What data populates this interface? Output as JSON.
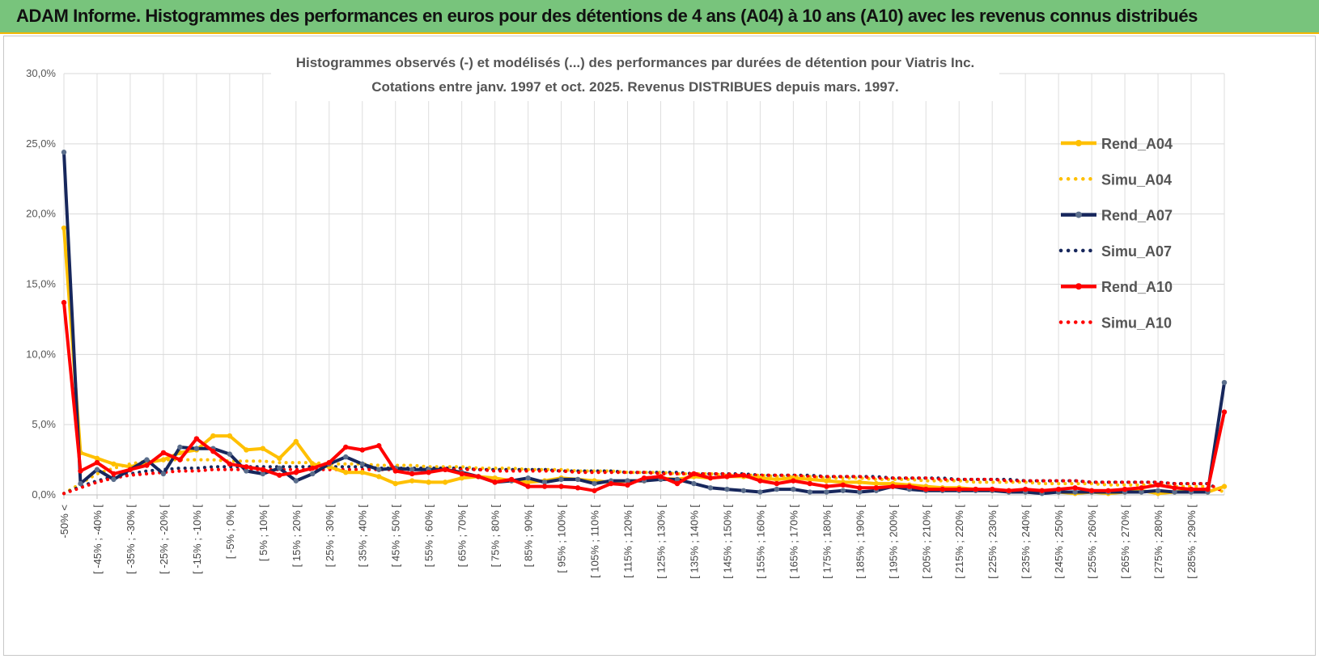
{
  "header": {
    "title": "ADAM Informe. Histogrammes des performances en euros pour des détentions de 4 ans (A04) à 10 ans (A10) avec les revenus connus distribués"
  },
  "chart_data": {
    "type": "line",
    "title_lines": [
      "Histogrammes observés (-) et modélisés (...) des performances par durées de détention pour Viatris Inc.",
      "Cotations entre janv. 1997 et oct. 2025.  Revenus DISTRIBUES depuis mars. 1997."
    ],
    "ylim": [
      0,
      30
    ],
    "y_ticks": [
      "0,0%",
      "5,0%",
      "10,0%",
      "15,0%",
      "20,0%",
      "25,0%",
      "30,0%"
    ],
    "x_tick_labels": [
      "-50% <",
      "[ -45% ; -40% [",
      "[ -35% ; -30% [",
      "[ -25% ; -20% [",
      "[ -15% ; -10% [",
      "[ -5% ; 0% [",
      "[ 5% ; 10% [",
      "[ 15% ; 20% [",
      "[ 25% ; 30% [",
      "[ 35% ; 40% [",
      "[ 45% ; 50% [",
      "[ 55% ; 60% [",
      "[ 65% ; 70% [",
      "[ 75% ; 80% [",
      "[ 85% ; 90% [",
      "[ 95% ; 100% [",
      "[ 105% ; 110% [",
      "[ 115% ; 120% [",
      "[ 125% ; 130% [",
      "[ 135% ; 140% [",
      "[ 145% ; 150% [",
      "[ 155% ; 160% [",
      "[ 165% ; 170% [",
      "[ 175% ; 180% [",
      "[ 185% ; 190% [",
      "[ 195% ; 200% [",
      "[ 205% ; 210% [",
      "[ 215% ; 220% [",
      "[ 225% ; 230% [",
      "[ 235% ; 240% [",
      "[ 245% ; 250% [",
      "[ 255% ; 260% [",
      "[ 265% ; 270% [",
      "[ 275% ; 280% [",
      "[ 285% ; 290% ["
    ],
    "category_count": 71,
    "legend_position": "right",
    "series": [
      {
        "name": "Rend_A04",
        "color": "#ffc000",
        "style": "solid",
        "markers": true,
        "values": [
          19.0,
          3.0,
          2.6,
          2.2,
          2.0,
          2.3,
          2.5,
          3.0,
          3.2,
          4.2,
          4.2,
          3.2,
          3.3,
          2.6,
          3.8,
          2.2,
          2.0,
          1.6,
          1.6,
          1.3,
          0.8,
          1.0,
          0.9,
          0.9,
          1.2,
          1.3,
          1.2,
          1.0,
          0.9,
          1.0,
          1.2,
          1.1,
          1.0,
          0.9,
          1.0,
          1.0,
          1.2,
          1.1,
          1.3,
          1.2,
          1.3,
          1.3,
          1.2,
          1.1,
          1.2,
          1.1,
          1.0,
          0.9,
          0.9,
          0.8,
          0.8,
          0.7,
          0.6,
          0.5,
          0.5,
          0.4,
          0.3,
          0.3,
          0.2,
          0.3,
          0.2,
          0.1,
          0.2,
          0.1,
          0.2,
          0.3,
          0.1,
          0.2,
          0.3,
          0.2,
          0.6
        ]
      },
      {
        "name": "Simu_A04",
        "color": "#ffc000",
        "style": "dotted",
        "markers": false,
        "values": [
          0.1,
          0.8,
          1.5,
          1.9,
          2.2,
          2.4,
          2.5,
          2.5,
          2.5,
          2.5,
          2.4,
          2.4,
          2.4,
          2.3,
          2.3,
          2.3,
          2.2,
          2.2,
          2.2,
          2.1,
          2.1,
          2.1,
          2.0,
          2.0,
          2.0,
          1.9,
          1.9,
          1.9,
          1.8,
          1.8,
          1.8,
          1.7,
          1.7,
          1.7,
          1.6,
          1.6,
          1.6,
          1.5,
          1.5,
          1.5,
          1.4,
          1.4,
          1.4,
          1.3,
          1.3,
          1.3,
          1.2,
          1.2,
          1.2,
          1.1,
          1.1,
          1.1,
          1.0,
          1.0,
          1.0,
          0.9,
          0.9,
          0.9,
          0.9,
          0.8,
          0.8,
          0.8,
          0.8,
          0.7,
          0.7,
          0.7,
          0.7,
          0.6,
          0.6,
          0.6,
          0.2
        ]
      },
      {
        "name": "Rend_A07",
        "color": "#17275c",
        "style": "solid",
        "markers": true,
        "values": [
          24.4,
          0.8,
          1.8,
          1.1,
          1.8,
          2.5,
          1.5,
          3.4,
          3.3,
          3.3,
          2.9,
          1.7,
          1.5,
          1.9,
          1.0,
          1.5,
          2.2,
          2.7,
          2.2,
          1.8,
          1.9,
          1.8,
          1.8,
          1.8,
          1.6,
          1.3,
          0.9,
          1.0,
          1.2,
          0.9,
          1.1,
          1.1,
          0.8,
          1.0,
          1.0,
          1.0,
          1.1,
          1.1,
          0.8,
          0.5,
          0.4,
          0.3,
          0.2,
          0.4,
          0.4,
          0.2,
          0.2,
          0.3,
          0.2,
          0.3,
          0.6,
          0.4,
          0.3,
          0.3,
          0.3,
          0.3,
          0.3,
          0.2,
          0.2,
          0.1,
          0.2,
          0.2,
          0.2,
          0.2,
          0.2,
          0.2,
          0.3,
          0.2,
          0.2,
          0.2,
          8.0
        ]
      },
      {
        "name": "Simu_A07",
        "color": "#17275c",
        "style": "dotted",
        "markers": false,
        "values": [
          0.1,
          0.6,
          1.0,
          1.3,
          1.5,
          1.7,
          1.8,
          1.9,
          1.9,
          2.0,
          2.0,
          2.0,
          2.0,
          2.0,
          2.0,
          2.0,
          2.0,
          2.0,
          2.0,
          1.9,
          1.9,
          1.9,
          1.9,
          1.9,
          1.9,
          1.8,
          1.8,
          1.8,
          1.8,
          1.8,
          1.7,
          1.7,
          1.7,
          1.7,
          1.6,
          1.6,
          1.6,
          1.6,
          1.5,
          1.5,
          1.5,
          1.5,
          1.4,
          1.4,
          1.4,
          1.4,
          1.3,
          1.3,
          1.3,
          1.3,
          1.2,
          1.2,
          1.2,
          1.2,
          1.1,
          1.1,
          1.1,
          1.1,
          1.0,
          1.0,
          1.0,
          1.0,
          0.9,
          0.9,
          0.9,
          0.9,
          0.9,
          0.8,
          0.8,
          0.8,
          0.2
        ]
      },
      {
        "name": "Rend_A10",
        "color": "#ff0000",
        "style": "solid",
        "markers": true,
        "values": [
          13.7,
          1.7,
          2.3,
          1.5,
          1.8,
          2.1,
          3.0,
          2.5,
          4.0,
          3.1,
          2.2,
          2.0,
          1.8,
          1.4,
          1.6,
          1.9,
          2.3,
          3.4,
          3.2,
          3.5,
          1.7,
          1.5,
          1.6,
          1.8,
          1.5,
          1.3,
          0.9,
          1.1,
          0.6,
          0.6,
          0.6,
          0.5,
          0.3,
          0.8,
          0.7,
          1.2,
          1.3,
          0.8,
          1.5,
          1.2,
          1.3,
          1.4,
          1.0,
          0.8,
          1.0,
          0.8,
          0.6,
          0.7,
          0.5,
          0.5,
          0.6,
          0.6,
          0.4,
          0.4,
          0.4,
          0.4,
          0.4,
          0.3,
          0.4,
          0.3,
          0.4,
          0.5,
          0.3,
          0.3,
          0.4,
          0.5,
          0.7,
          0.5,
          0.4,
          0.4,
          5.9
        ]
      },
      {
        "name": "Simu_A10",
        "color": "#ff0000",
        "style": "dotted",
        "markers": false,
        "values": [
          0.1,
          0.5,
          0.9,
          1.2,
          1.4,
          1.5,
          1.6,
          1.7,
          1.7,
          1.8,
          1.8,
          1.8,
          1.8,
          1.8,
          1.8,
          1.8,
          1.8,
          1.8,
          1.8,
          1.8,
          1.8,
          1.8,
          1.8,
          1.8,
          1.8,
          1.8,
          1.7,
          1.7,
          1.7,
          1.7,
          1.7,
          1.6,
          1.6,
          1.6,
          1.6,
          1.6,
          1.5,
          1.5,
          1.5,
          1.5,
          1.5,
          1.4,
          1.4,
          1.4,
          1.4,
          1.3,
          1.3,
          1.3,
          1.3,
          1.2,
          1.2,
          1.2,
          1.2,
          1.1,
          1.1,
          1.1,
          1.1,
          1.0,
          1.0,
          1.0,
          1.0,
          1.0,
          0.9,
          0.9,
          0.9,
          0.9,
          0.9,
          0.8,
          0.8,
          0.8,
          0.2
        ]
      }
    ]
  }
}
